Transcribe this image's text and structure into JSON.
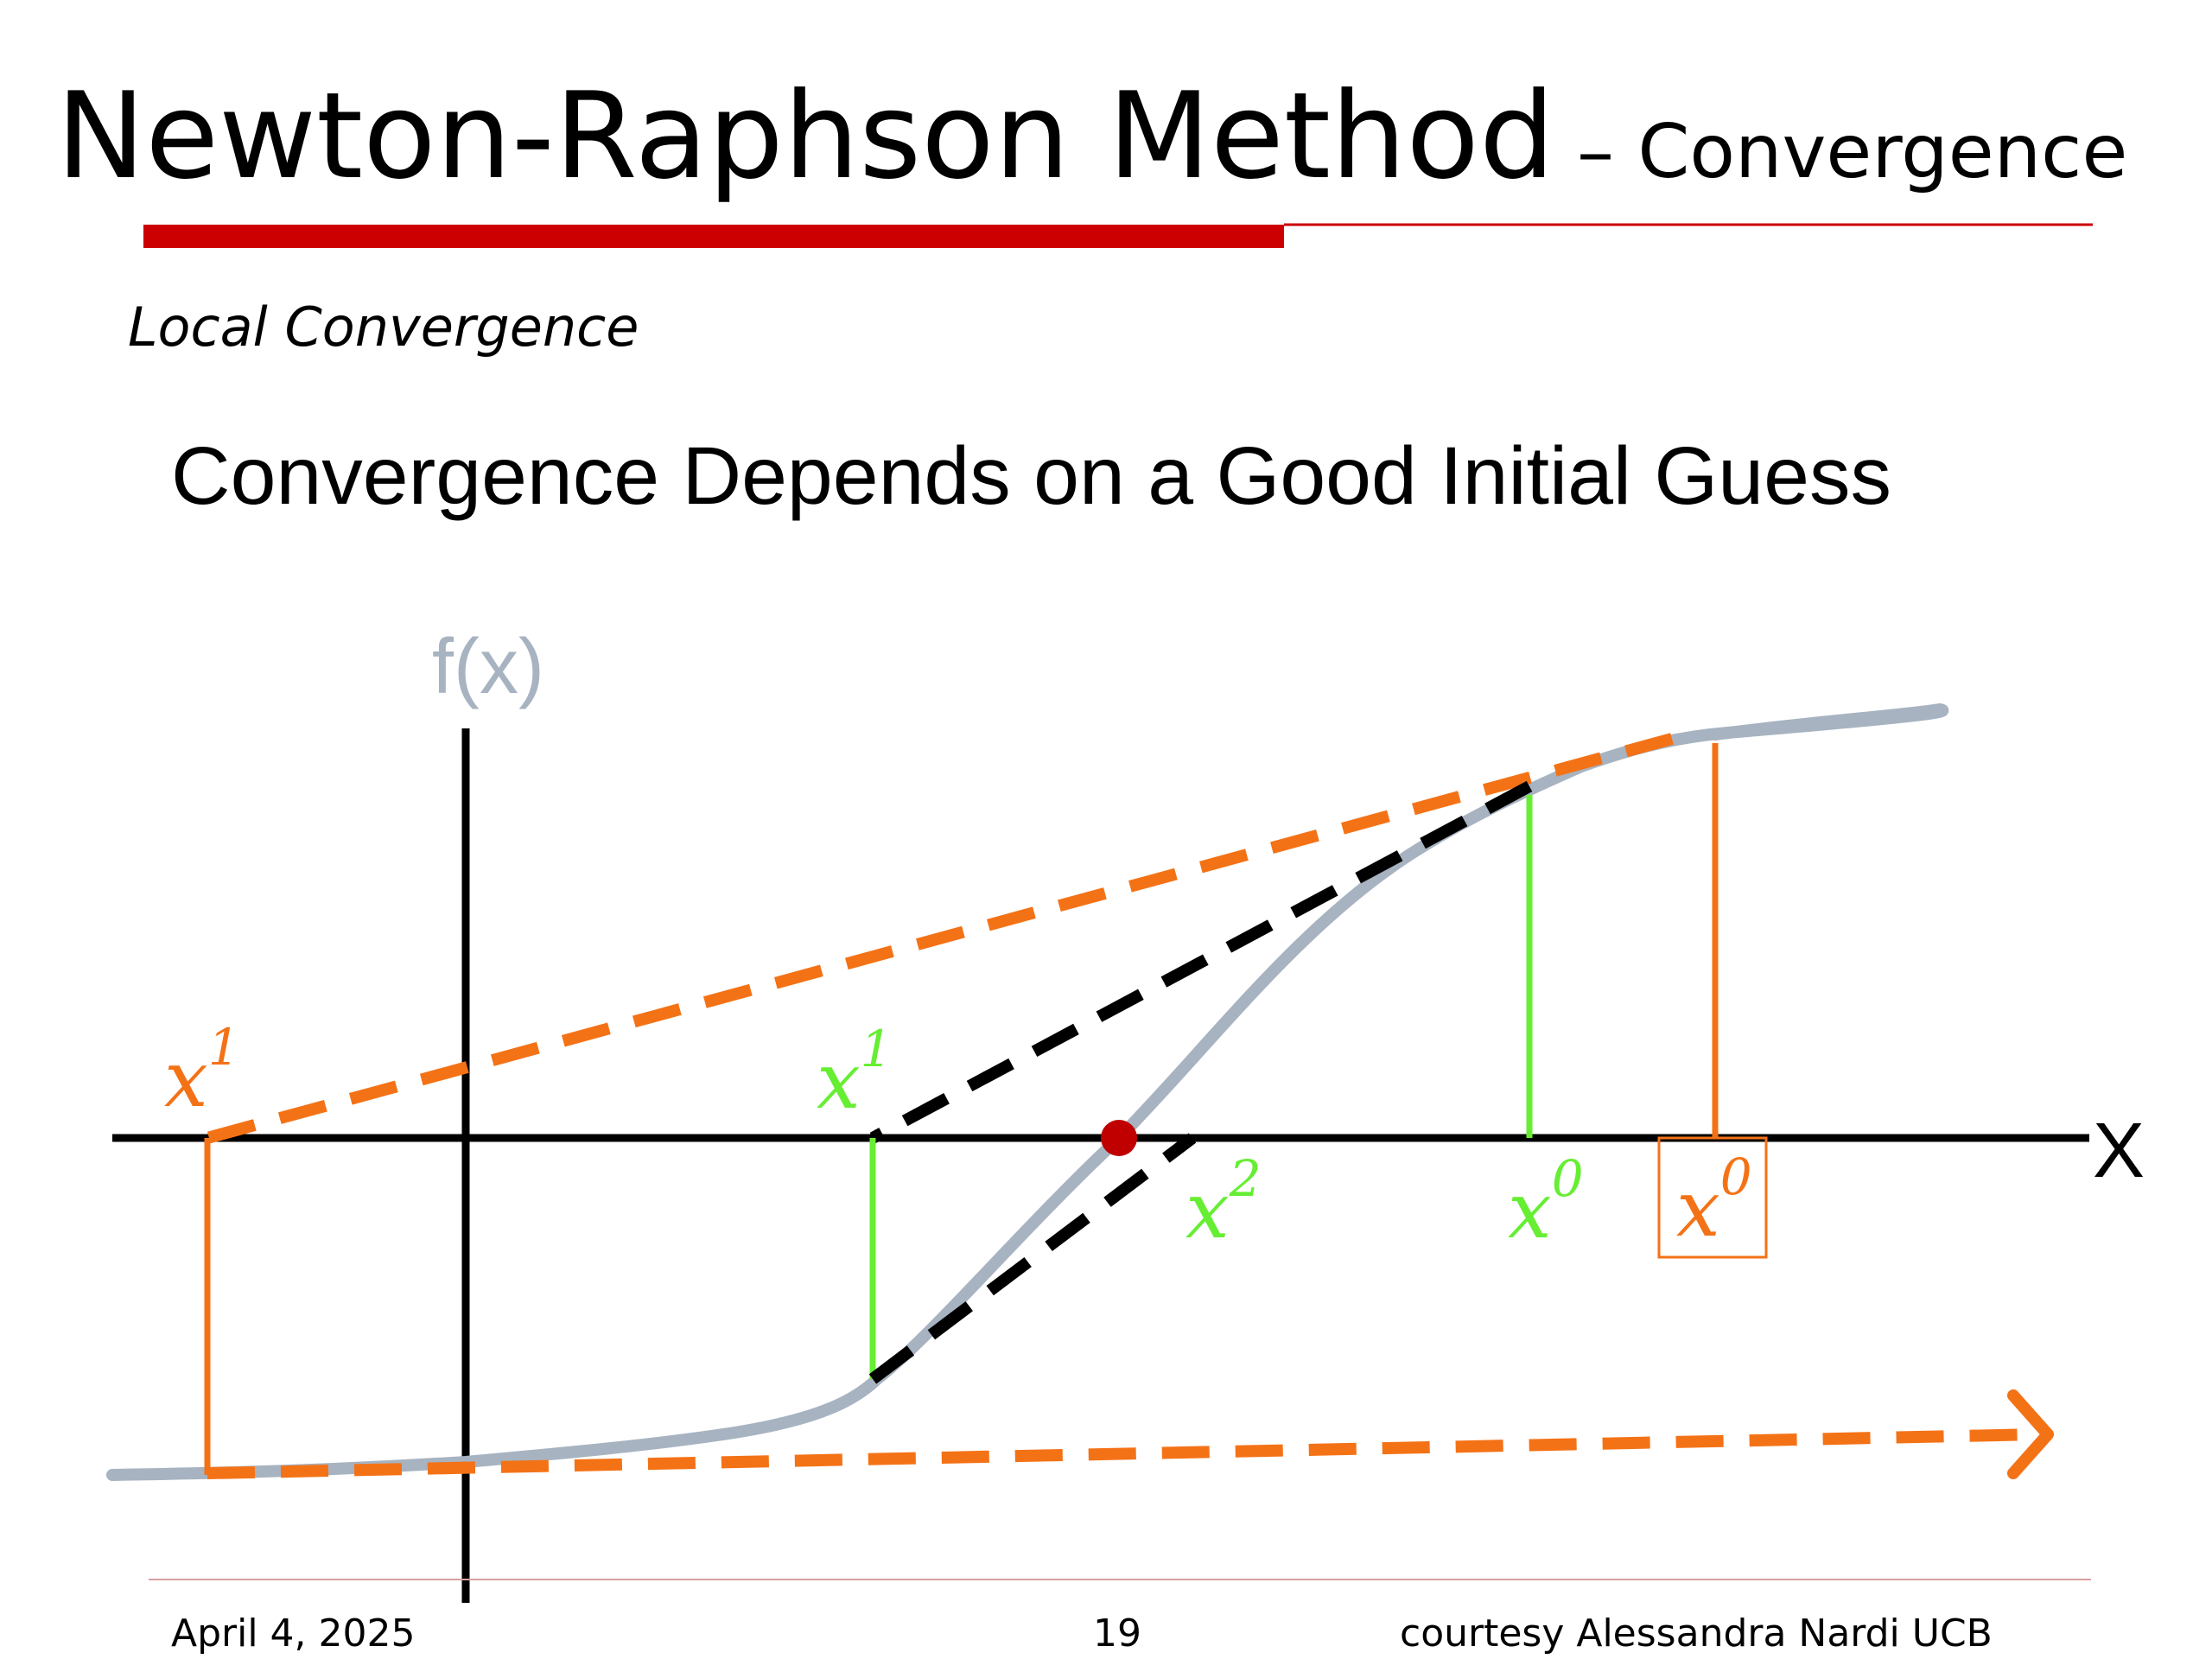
{
  "slide": {
    "title_main": "Newton-Raphson Method",
    "title_sub": "– Convergence",
    "section": "Local Convergence",
    "heading": "Convergence Depends on a Good Initial Guess"
  },
  "diagram": {
    "y_axis_label": "f(x)",
    "x_axis_label": "X",
    "bad_guess": {
      "start_label": "x",
      "start_sup": "0",
      "next_label": "x",
      "next_sup": "1"
    },
    "good_guess": {
      "start_label": "x",
      "start_sup": "0",
      "next_label": "x",
      "next_sup": "1",
      "third_label": "x",
      "third_sup": "2"
    },
    "colors": {
      "curve": "#a7b3c1",
      "bad_path": "#f47216",
      "good_path": "#66ee33",
      "tangent_good": "#000000",
      "root": "#c00000",
      "title_bar": "#cc0000"
    }
  },
  "footer": {
    "date": "April 4, 2025",
    "page": "19",
    "credit": "courtesy Alessandra Nardi UCB"
  }
}
